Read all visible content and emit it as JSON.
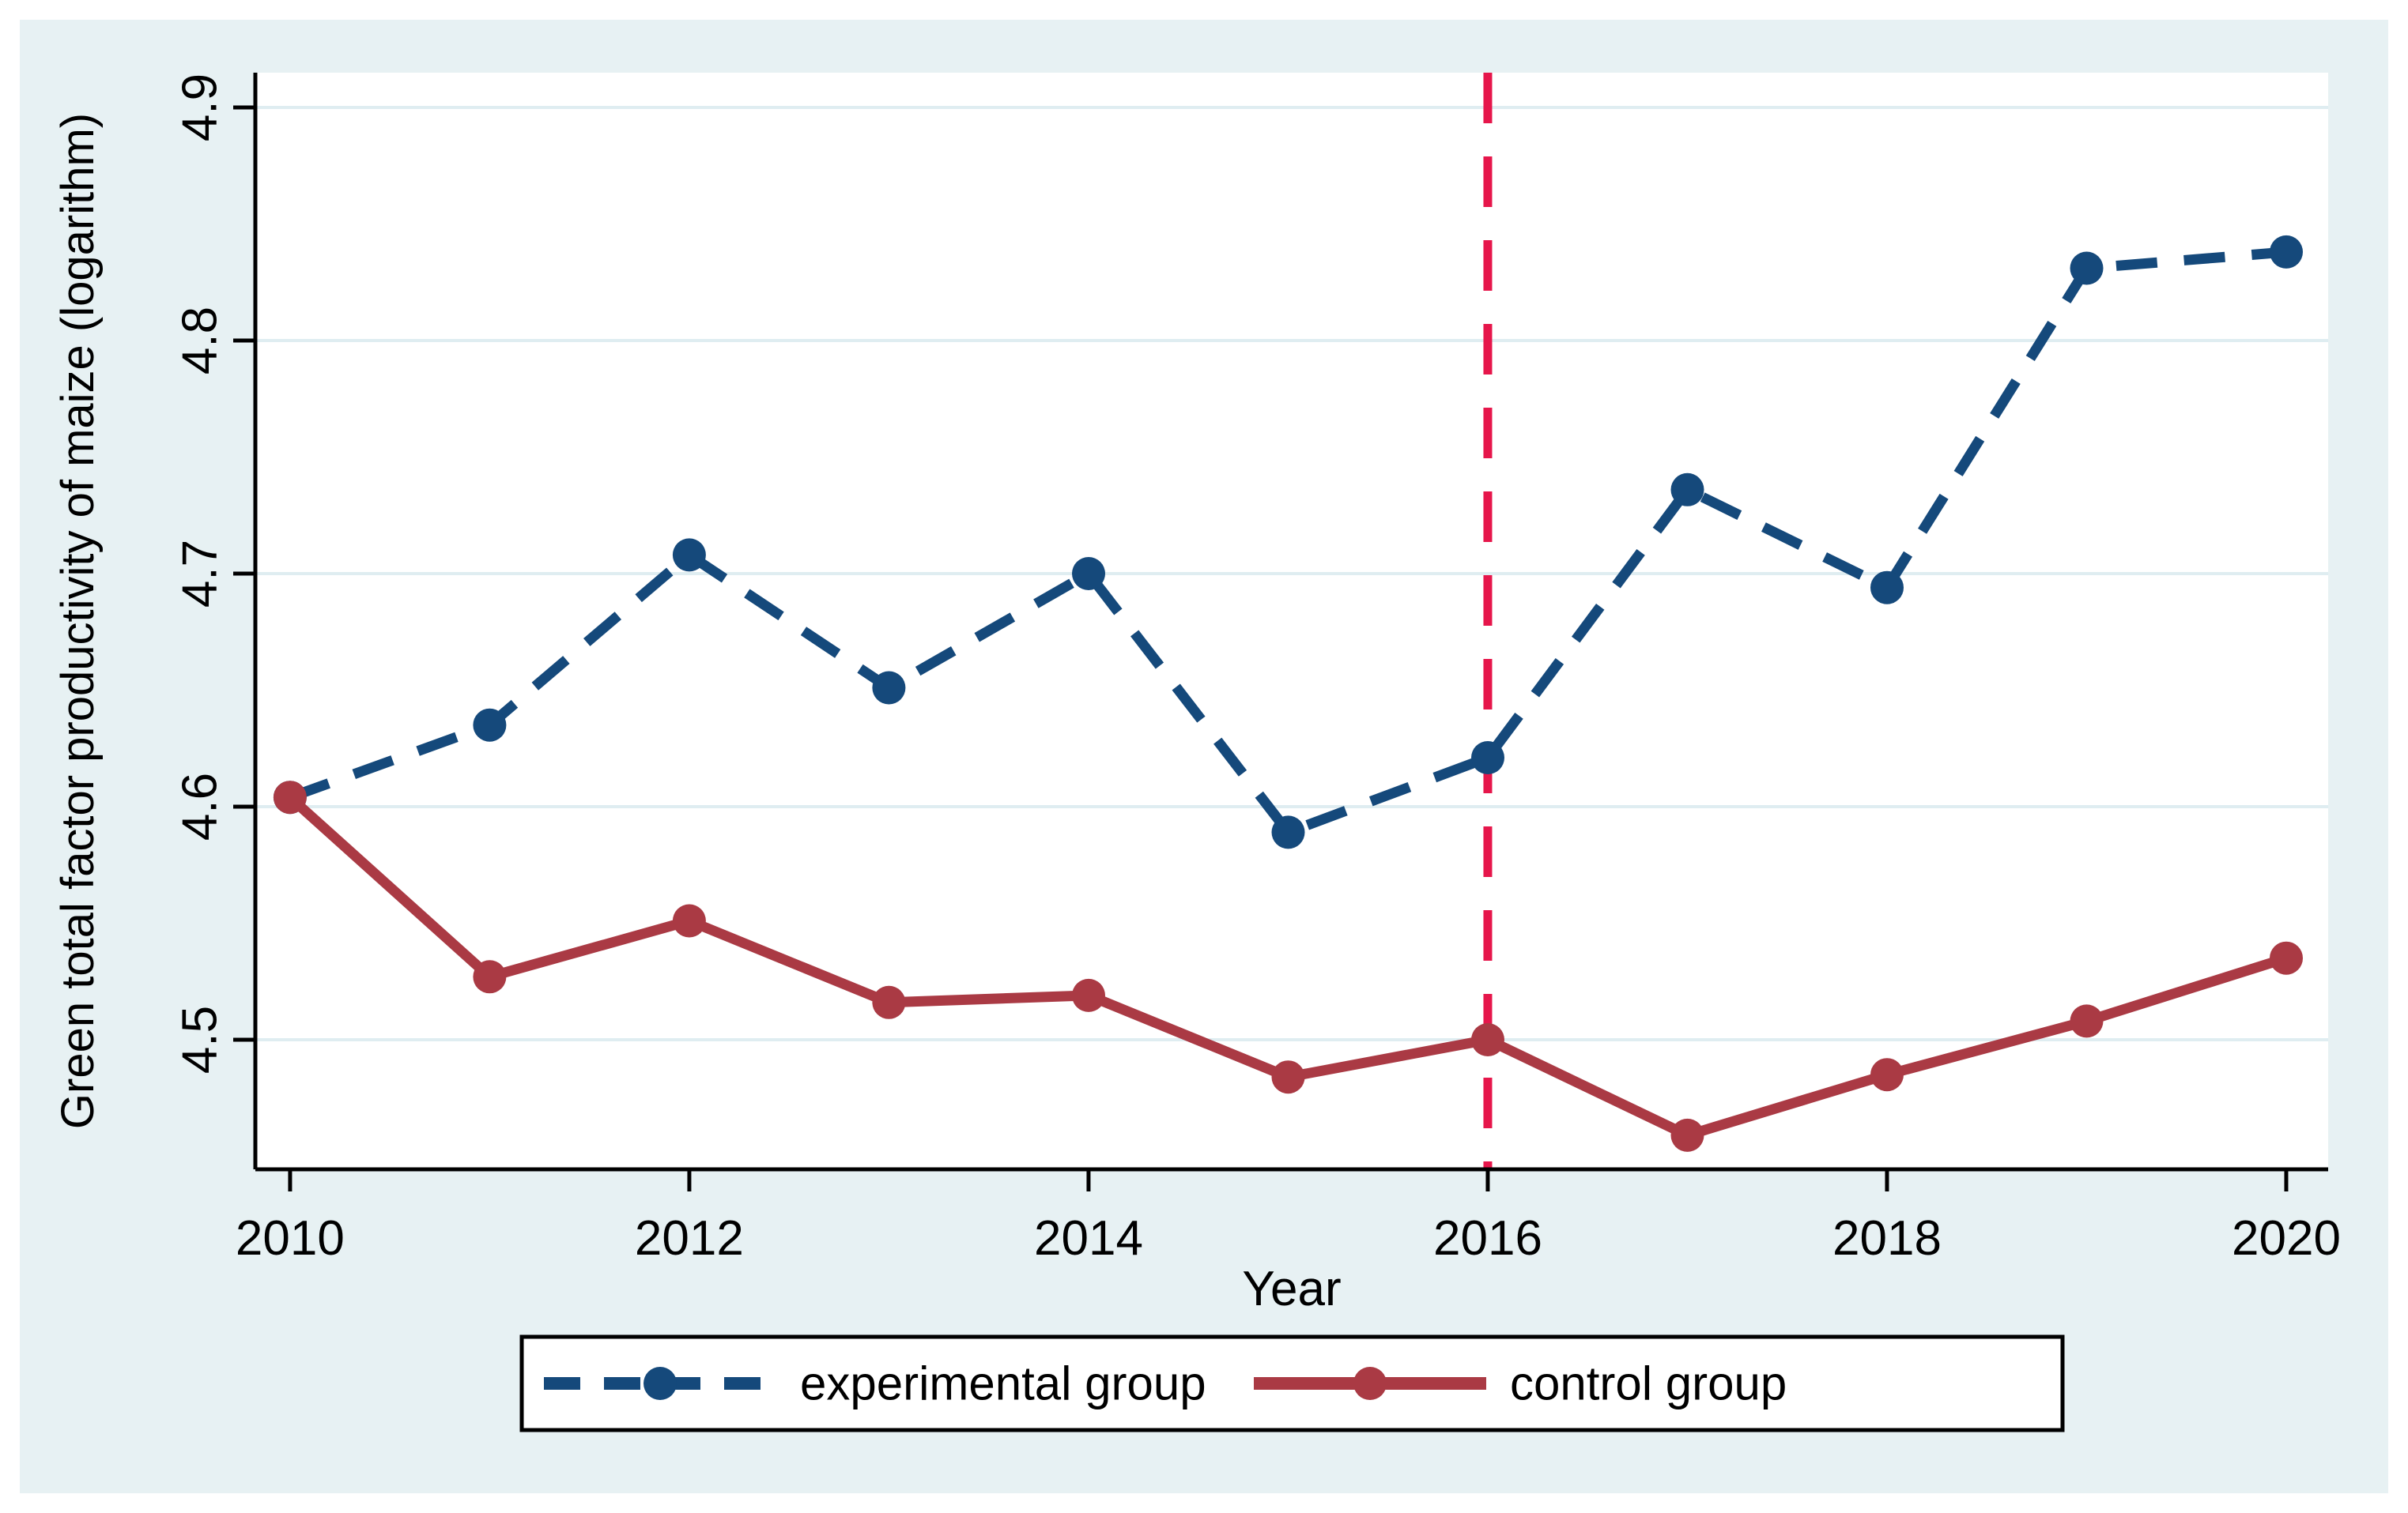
{
  "figure": {
    "outer_background": "#ffffff",
    "panel_background": "#e7f1f3",
    "plot_background": "#ffffff",
    "grid_color": "#dfedf1",
    "axis_color": "#000000"
  },
  "chart_data": {
    "type": "line",
    "title": "",
    "xlabel": "Year",
    "ylabel": "Green total factor productivity of maize (logarithm)",
    "x": [
      2010,
      2011,
      2012,
      2013,
      2014,
      2015,
      2016,
      2017,
      2018,
      2019,
      2020
    ],
    "series": [
      {
        "name": "experimental group",
        "color": "#15497b",
        "line_style": "dashed",
        "marker": "circle",
        "values": [
          4.604,
          4.635,
          4.708,
          4.651,
          4.7,
          4.589,
          4.621,
          4.736,
          4.694,
          4.831,
          4.838
        ]
      },
      {
        "name": "control group",
        "color": "#aa3a44",
        "line_style": "solid",
        "marker": "circle",
        "values": [
          4.604,
          4.527,
          4.551,
          4.516,
          4.519,
          4.484,
          4.5,
          4.459,
          4.485,
          4.508,
          4.535
        ]
      }
    ],
    "reference_line": {
      "x": 2016,
      "color": "#e6164b",
      "style": "dashed",
      "orientation": "vertical"
    },
    "x_ticks": [
      2010,
      2012,
      2014,
      2016,
      2018,
      2020
    ],
    "y_ticks": [
      4.5,
      4.6,
      4.7,
      4.8,
      4.9
    ],
    "xlim": [
      2009.826,
      2020.21
    ],
    "ylim": [
      4.4444,
      4.9149
    ],
    "grid": "horizontal",
    "legend": {
      "position": "bottom",
      "border": true,
      "entries": [
        "experimental group",
        "control group"
      ]
    }
  }
}
